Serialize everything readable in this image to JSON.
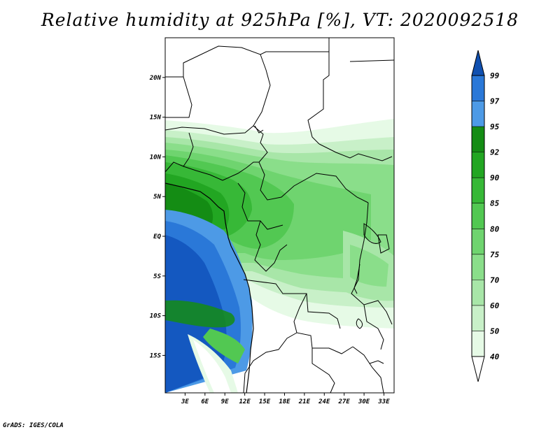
{
  "title": "Relative humidity at 925hPa [%], VT: 2020092518",
  "footer": "GrADS: IGES/COLA",
  "map": {
    "lon_ticks": [
      {
        "value": 3,
        "label": "3E"
      },
      {
        "value": 6,
        "label": "6E"
      },
      {
        "value": 9,
        "label": "9E"
      },
      {
        "value": 12,
        "label": "12E"
      },
      {
        "value": 15,
        "label": "15E"
      },
      {
        "value": 18,
        "label": "18E"
      },
      {
        "value": 21,
        "label": "21E"
      },
      {
        "value": 24,
        "label": "24E"
      },
      {
        "value": 27,
        "label": "27E"
      },
      {
        "value": 30,
        "label": "30E"
      },
      {
        "value": 33,
        "label": "33E"
      }
    ],
    "lat_ticks": [
      {
        "value": 20,
        "label": "20N"
      },
      {
        "value": 15,
        "label": "15N"
      },
      {
        "value": 10,
        "label": "10N"
      },
      {
        "value": 5,
        "label": "5N"
      },
      {
        "value": 0,
        "label": "EQ"
      },
      {
        "value": -5,
        "label": "5S"
      },
      {
        "value": -10,
        "label": "10S"
      },
      {
        "value": -15,
        "label": "15S"
      }
    ]
  },
  "colorbar": {
    "levels": [
      {
        "label": "40",
        "color": "#e6fae6"
      },
      {
        "label": "50",
        "color": "#c8f0c8"
      },
      {
        "label": "60",
        "color": "#a8e6a8"
      },
      {
        "label": "70",
        "color": "#8ade8a"
      },
      {
        "label": "75",
        "color": "#6fd46f"
      },
      {
        "label": "80",
        "color": "#52c852"
      },
      {
        "label": "85",
        "color": "#37b837"
      },
      {
        "label": "90",
        "color": "#22a622"
      },
      {
        "label": "92",
        "color": "#148c14"
      },
      {
        "label": "95",
        "color": "#4d9ae6"
      },
      {
        "label": "97",
        "color": "#2a78d8"
      },
      {
        "label": "99",
        "color": "#1458c0"
      }
    ],
    "top_color": "#1050b0"
  }
}
